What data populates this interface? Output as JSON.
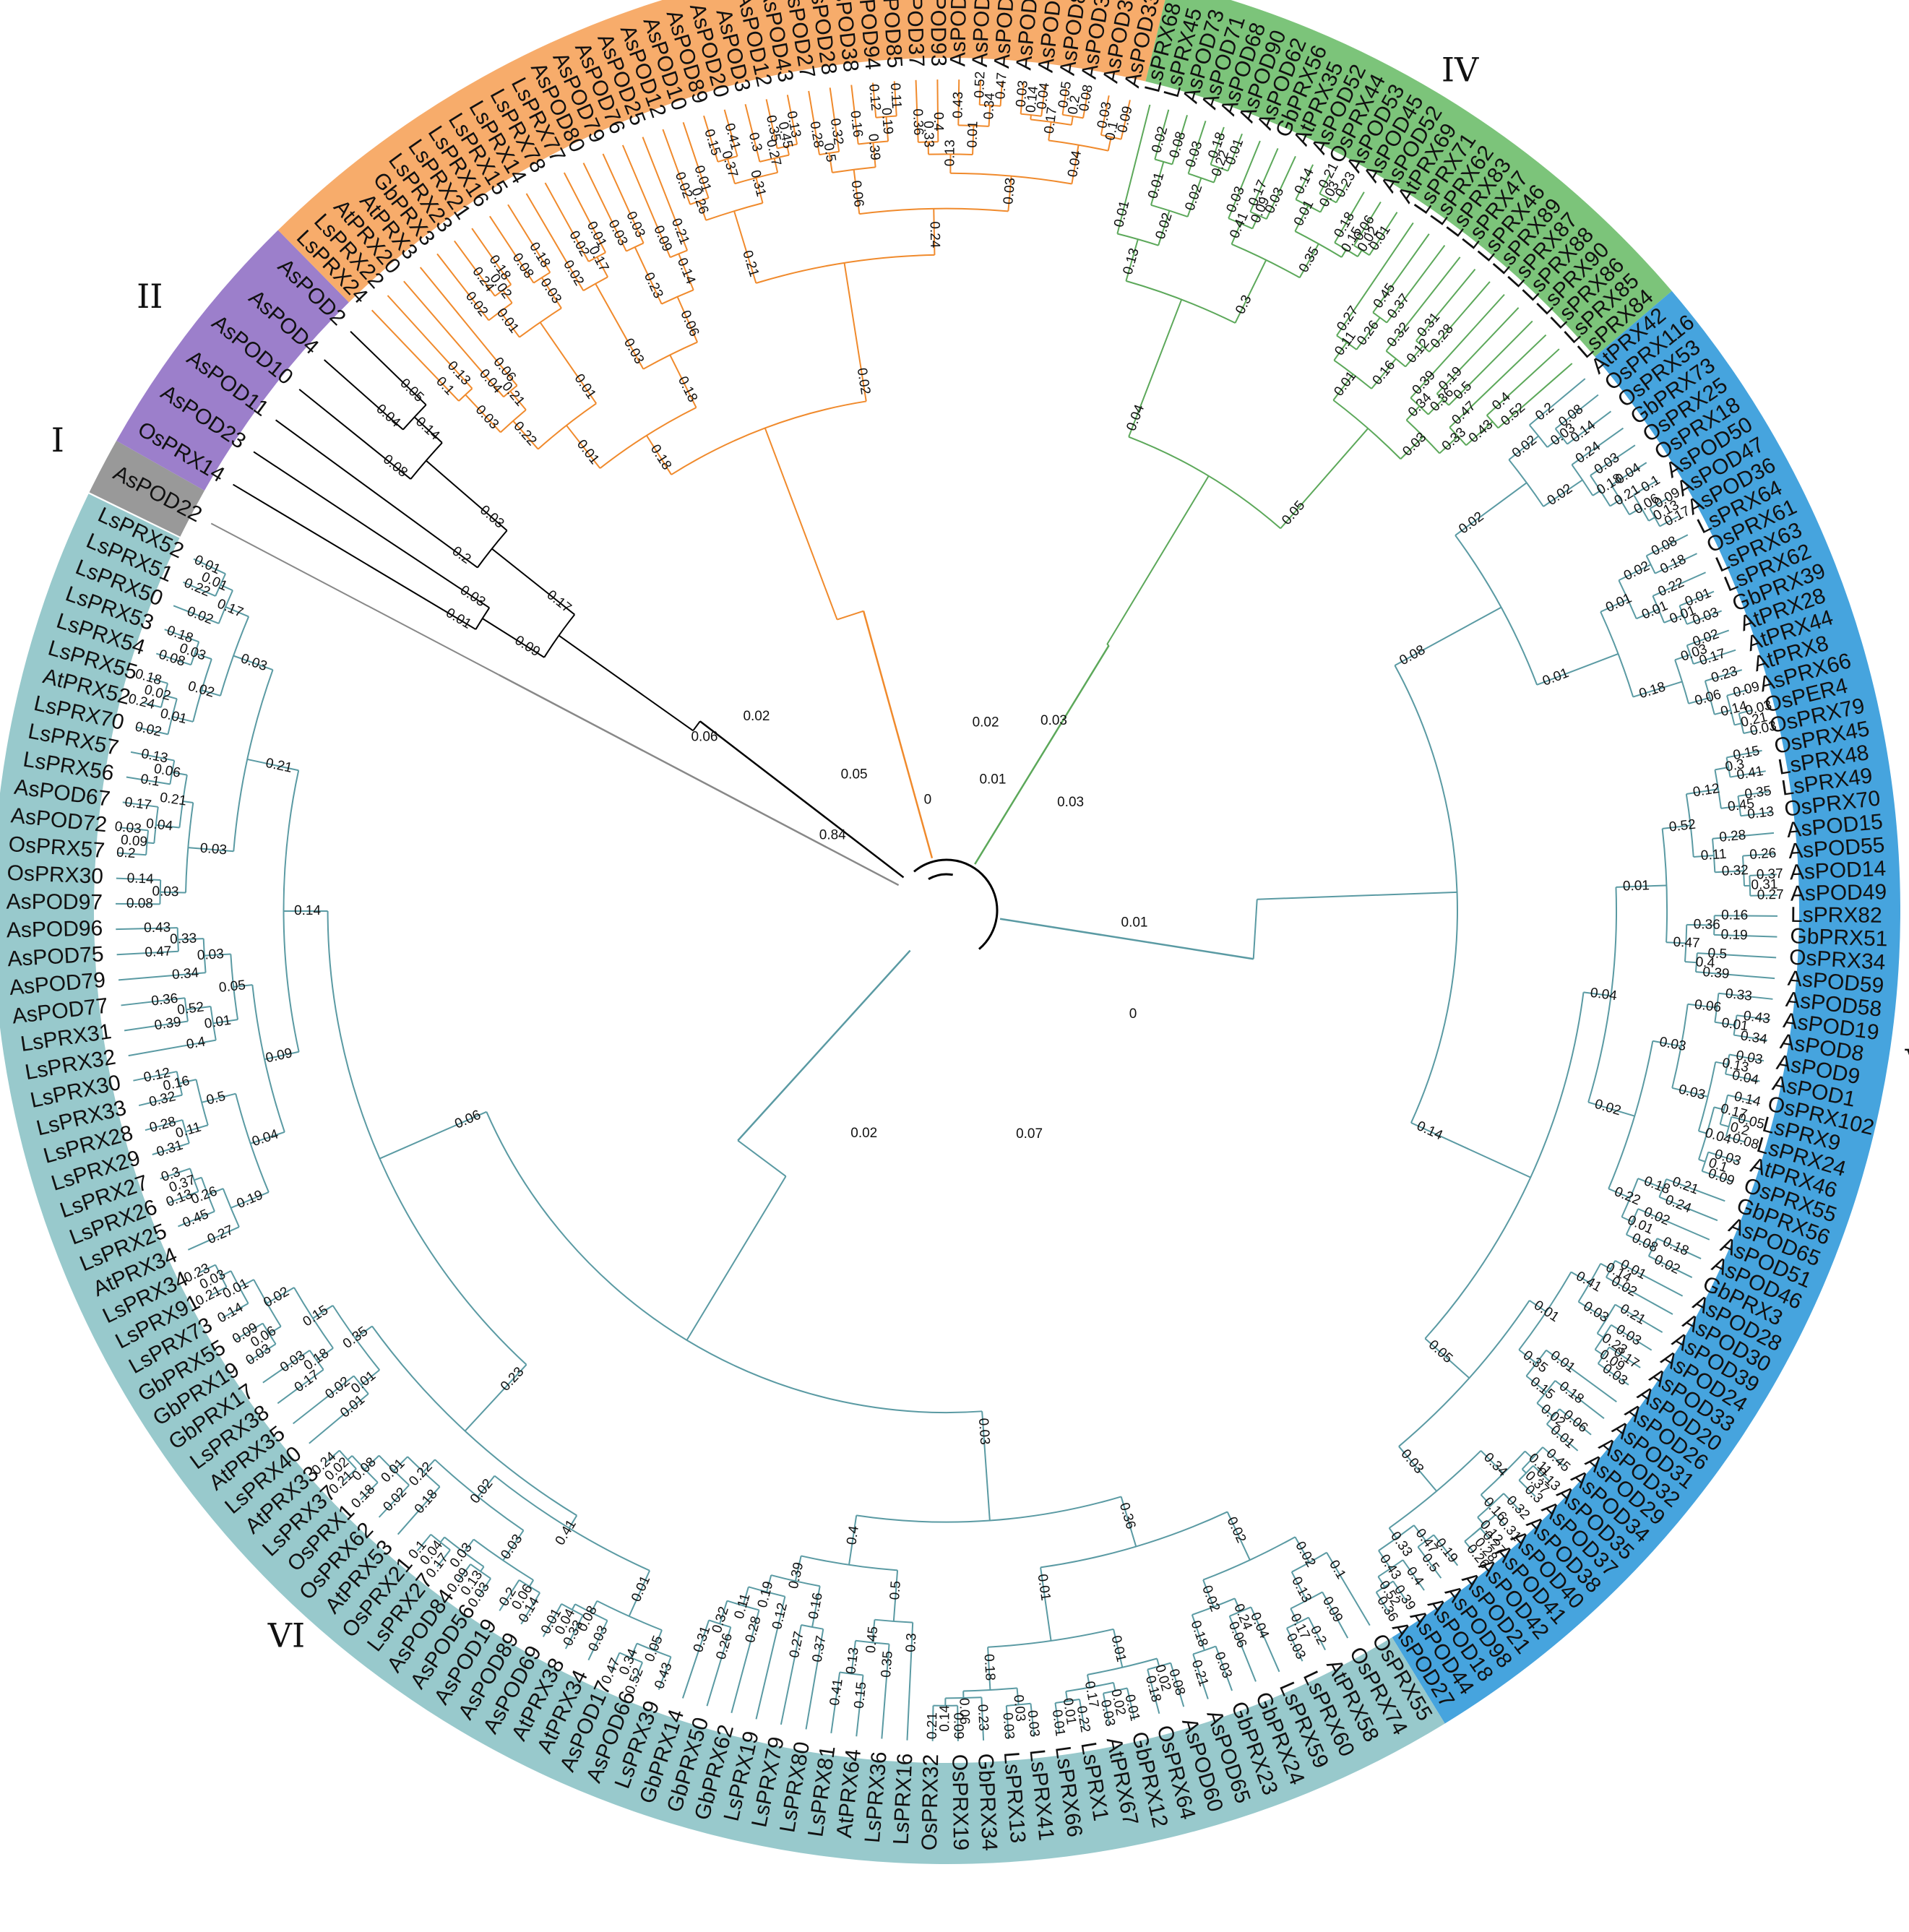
{
  "tree": {
    "clades": [
      {
        "id": "I",
        "label": "I",
        "color": "#999999",
        "branch_color": "#888888",
        "leaves": [
          "AsPOD22"
        ]
      },
      {
        "id": "II",
        "label": "II",
        "color": "#9c7fcb",
        "branch_color": "#000000",
        "leaves": [
          "OsPRX14",
          "AsPOD23",
          "AsPOD11",
          "AsPOD10",
          "AsPOD4",
          "AsPOD2"
        ]
      },
      {
        "id": "III",
        "label": "III",
        "color": "#f7ac6b",
        "branch_color": "#f08a2c",
        "leaves": [
          "LsPRX24",
          "LsPRX22",
          "AtPRX20",
          "AtPRX3",
          "GbPRX3",
          "LsPRX23",
          "LsPRX21",
          "LsPRX16",
          "LsPRX15",
          "LsPRX14",
          "LsPRX78",
          "LsPRX77",
          "AsPOD80",
          "AsPOD79",
          "AsPOD76",
          "AsPOD25",
          "AsPOD12",
          "AsPOD10",
          "AsPOD89",
          "AsPOD20",
          "AsPOD3",
          "AsPOD12",
          "AsPOD43",
          "AsPOD27",
          "AsPOD28",
          "AsPOD38",
          "AsPOD94",
          "AsPOD85",
          "AsPOD37",
          "AsPOD93",
          "AsPOD84",
          "AsPOD35",
          "AsPOD92",
          "AsPOD83",
          "AsPOD91",
          "AsPOD82",
          "AsPOD36",
          "AsPOD34",
          "AsPOD33"
        ]
      },
      {
        "id": "IV",
        "label": "IV",
        "color": "#7cc47a",
        "branch_color": "#5ca85a",
        "leaves": [
          "LsPRX68",
          "LsPRX45",
          "AsPOD73",
          "AsPOD71",
          "AsPOD68",
          "AsPOD90",
          "AsPOD62",
          "GbPRX56",
          "AtPRX35",
          "AsPOD52",
          "OsPRX44",
          "AsPOD53",
          "AsPOD45",
          "AsPOD52",
          "AtPRX69",
          "LsPRX71",
          "LsPRX62",
          "LsPRX83",
          "LsPRX47",
          "LsPRX46",
          "LsPRX89",
          "LsPRX87",
          "LsPRX88",
          "LsPRX90",
          "LsPRX86",
          "LsPRX85",
          "LsPRX84"
        ]
      },
      {
        "id": "V",
        "label": "V",
        "color": "#46a4de",
        "branch_color": "#5a9aa3",
        "leaves": [
          "AtPRX42",
          "OsPRX116",
          "OsPRX53",
          "GbPRX73",
          "OsPRX25",
          "OsPRX18",
          "AsPOD50",
          "AsPOD47",
          "AsPOD36",
          "LsPRX64",
          "OsPRX61",
          "LsPRX63",
          "LsPRX62",
          "GbPRX39",
          "AtPRX28",
          "AtPRX44",
          "AtPRX8",
          "AsPRX66",
          "OsPER4",
          "OsPRX79",
          "OsPRX45",
          "LsPRX48",
          "LsPRX49",
          "OsPRX70",
          "AsPOD15",
          "AsPOD55",
          "AsPOD14",
          "AsPOD49",
          "LsPRX82",
          "GbPRX51",
          "OsPRX34",
          "AsPOD59",
          "AsPOD58",
          "AsPOD19",
          "AsPOD8",
          "AsPOD9",
          "AsPOD1",
          "OsPRX102",
          "LsPRX9",
          "LsPRX24",
          "AtPRX46",
          "OsPRX55",
          "GbPRX56",
          "AsPOD65",
          "AsPOD51",
          "AsPOD46",
          "GbPRX3",
          "AsPOD28",
          "AsPOD30",
          "AsPOD39",
          "AsPOD24",
          "AsPOD33",
          "AsPOD20",
          "AsPOD26",
          "AsPOD31",
          "AsPOD32",
          "AsPOD29",
          "AsPOD34",
          "AsPOD35",
          "AsPOD37",
          "AsPOD38",
          "AsPOD40",
          "AsPOD41",
          "AsPOD42",
          "AsPOD21",
          "AsPOD98",
          "AsPOD18",
          "AsPOD44",
          "AsPOD27"
        ]
      },
      {
        "id": "VI",
        "label": "VI",
        "color": "#98c9cc",
        "branch_color": "#5a9aa3",
        "leaves": [
          "OsPRX55",
          "OsPRX74",
          "AtPRX58",
          "LsPRX60",
          "LsPRX59",
          "GbPRX24",
          "GbPRX23",
          "AsPOD65",
          "AsPOD60",
          "OsPRX64",
          "GbPRX12",
          "AtPRX67",
          "LsPRX1",
          "LsPRX66",
          "LsPRX41",
          "LsPRX13",
          "GbPRX34",
          "OsPRX19",
          "OsPRX32",
          "LsPRX16",
          "LsPRX36",
          "AtPRX64",
          "LsPRX81",
          "LsPRX80",
          "LsPRX79",
          "LsPRX19",
          "GbPRX62",
          "GbPRX50",
          "GbPRX14",
          "LsPRX39",
          "AsPOD66",
          "AsPOD17",
          "AtPRX34",
          "AtPRX38",
          "AsPOD69",
          "AsPOD89",
          "AsPOD19",
          "AsPOD56",
          "AsPOD84",
          "LsPRX27",
          "OsPRX21",
          "AtPRX53",
          "OsPRX62",
          "OsPRX1",
          "LsPRX37",
          "AtPRX33",
          "LsPRX40",
          "AtPRX35",
          "LsPRX38",
          "GbPRX17",
          "GbPRX19",
          "GbPRX55",
          "LsPRX73",
          "LsPRX91",
          "LsPRX34",
          "AtPRX34",
          "LsPRX25",
          "LsPRX26",
          "LsPRX27",
          "LsPRX29",
          "LsPRX28",
          "LsPRX33",
          "LsPRX30",
          "LsPRX32",
          "LsPRX31",
          "AsPOD77",
          "AsPOD79",
          "AsPOD75",
          "AsPOD96",
          "AsPOD97",
          "OsPRX30",
          "OsPRX57",
          "AsPOD72",
          "AsPOD67",
          "LsPRX56",
          "LsPRX57",
          "LsPRX70",
          "AtPRX52",
          "LsPRX55",
          "LsPRX54",
          "LsPRX53",
          "LsPRX50",
          "LsPRX51",
          "LsPRX52"
        ]
      }
    ],
    "root_branch_lengths": [
      "0",
      "0.01",
      "0.03",
      "0.01",
      "0",
      "0.07",
      "0.02",
      "0.06",
      "0.84",
      "0.05",
      "0.02",
      "0.03",
      "0.02"
    ],
    "internal_branch_lengths": [
      "0.01",
      "0.03",
      "0.04",
      "0.05",
      "0.08",
      "0.14",
      "0.2",
      "0.03",
      "0.09",
      "0.17",
      "0.1",
      "0.13",
      "0.04",
      "0.06",
      "0.03",
      "0.21",
      "0.24",
      "0.18",
      "0.02",
      "0.02",
      "0.08",
      "0.18",
      "0.01",
      "0.03",
      "0.22",
      "0.01",
      "0.02",
      "0.01",
      "0.02",
      "0.17",
      "0.03",
      "0.03",
      "0.09",
      "0.21",
      "0.23",
      "0.14",
      "0.03",
      "0.06",
      "0.01",
      "0.18",
      "0.02",
      "0.01",
      "0.15",
      "0.41",
      "0.35",
      "0.13",
      "0.3",
      "0.45",
      "0.37",
      "0.27",
      "0.26",
      "0.31",
      "0.28",
      "0.32",
      "0.12",
      "0.11",
      "0.16",
      "0.19",
      "0.5",
      "0.39",
      "0.36",
      "0.4",
      "0.52",
      "0.47",
      "0.43",
      "0.34",
      "0.33"
    ]
  }
}
